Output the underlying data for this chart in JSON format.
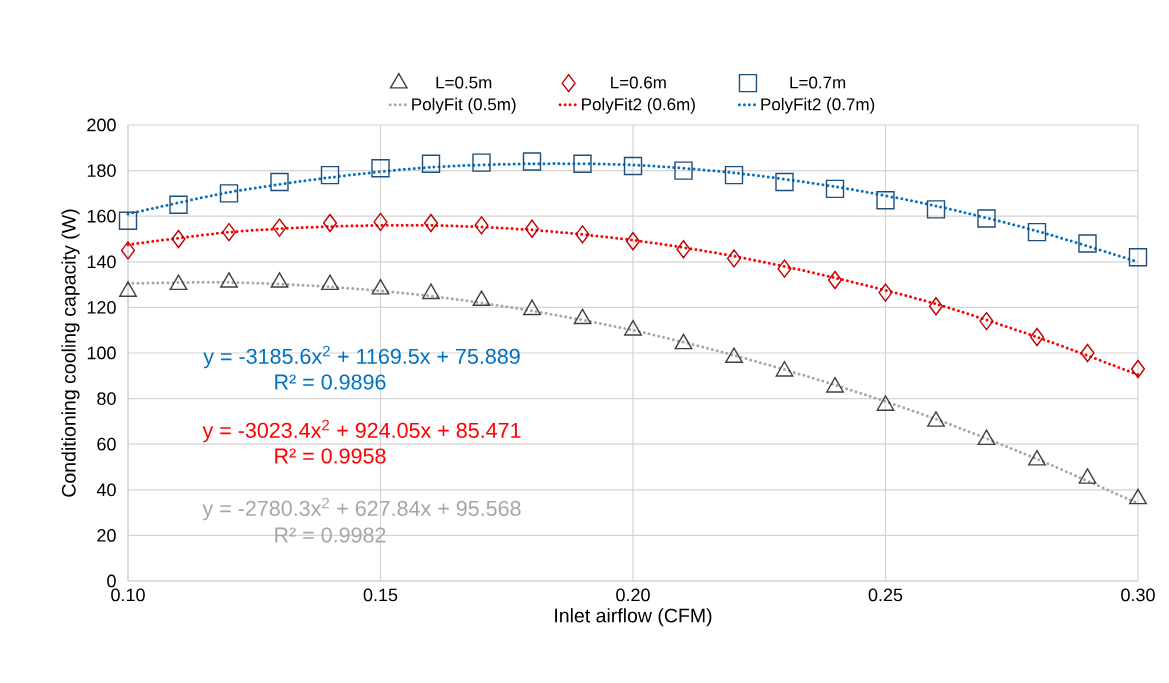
{
  "chart_data": {
    "type": "scatter",
    "xlabel": "Inlet airflow (CFM)",
    "ylabel": "Conditioning cooling capacity (W)",
    "xlim": [
      0.1,
      0.3
    ],
    "ylim": [
      0,
      200
    ],
    "xticks": [
      {
        "value": 0.1,
        "label": "0.10"
      },
      {
        "value": 0.15,
        "label": "0.15"
      },
      {
        "value": 0.2,
        "label": "0.20"
      },
      {
        "value": 0.25,
        "label": "0.25"
      },
      {
        "value": 0.3,
        "label": "0.30"
      }
    ],
    "yticks": [
      0,
      20,
      40,
      60,
      80,
      100,
      120,
      140,
      160,
      180,
      200
    ],
    "grid": true,
    "legend": "top",
    "x": [
      0.1,
      0.11,
      0.12,
      0.13,
      0.14,
      0.15,
      0.16,
      0.17,
      0.18,
      0.19,
      0.2,
      0.21,
      0.22,
      0.23,
      0.24,
      0.25,
      0.26,
      0.27,
      0.28,
      0.29,
      0.3
    ],
    "series": [
      {
        "name": "L=0.5m",
        "marker": "triangle",
        "color": "#404040",
        "values": [
          127,
          130,
          131,
          131,
          130,
          128,
          126,
          123,
          119,
          115,
          110,
          104,
          98,
          92,
          85,
          77,
          70,
          62,
          53,
          45,
          36
        ]
      },
      {
        "name": "L=0.6m",
        "marker": "diamond",
        "color": "#c00000",
        "values": [
          145,
          150,
          153,
          155,
          157,
          157.5,
          157,
          156,
          154.5,
          152,
          149,
          145.5,
          141.5,
          137,
          132,
          126.5,
          120.5,
          114,
          107,
          100,
          93
        ]
      },
      {
        "name": "L=0.7m",
        "marker": "square",
        "color": "#1f4e79",
        "values": [
          158,
          165,
          170,
          175,
          178,
          181,
          183,
          183.5,
          184,
          183,
          182,
          180,
          178,
          175,
          172,
          167,
          163,
          159,
          153,
          148,
          142
        ]
      },
      {
        "name": "PolyFit (0.5m)",
        "type": "line",
        "marker": "none",
        "line_style": "dotted",
        "color": "#a6a6a6",
        "x": [
          0.1,
          0.12,
          0.14,
          0.16,
          0.18,
          0.2,
          0.22,
          0.24,
          0.26,
          0.28,
          0.3
        ],
        "values": [
          130.5,
          131,
          129,
          125,
          118.5,
          110,
          99,
          86,
          71,
          53.5,
          34
        ]
      },
      {
        "name": "PolyFit2 (0.6m)",
        "type": "line",
        "marker": "none",
        "line_style": "dotted",
        "color": "#ff0000",
        "x": [
          0.1,
          0.12,
          0.14,
          0.16,
          0.18,
          0.2,
          0.22,
          0.24,
          0.26,
          0.28,
          0.3
        ],
        "values": [
          147.5,
          153,
          155.5,
          156,
          154,
          149.5,
          142.5,
          133,
          121.5,
          107,
          90.5
        ]
      },
      {
        "name": "PolyFit2 (0.7m)",
        "type": "line",
        "marker": "none",
        "line_style": "dotted",
        "color": "#0070c0",
        "x": [
          0.1,
          0.12,
          0.14,
          0.16,
          0.18,
          0.2,
          0.22,
          0.24,
          0.26,
          0.28,
          0.3
        ],
        "values": [
          161,
          170.5,
          177,
          181.5,
          183,
          182.5,
          179,
          173,
          164.5,
          153.5,
          140
        ]
      }
    ],
    "annotations": [
      "y = -3185.6x$^{2}$ + 1169.5x + 75.889",
      "R² = 0.9896",
      "y = -3023.4x$^{2}$ + 924.05x + 85.471",
      "R² = 0.9958",
      "y = -2780.3x$^{2}$ + 627.84x + 95.568",
      "R² = 0.9982"
    ]
  }
}
